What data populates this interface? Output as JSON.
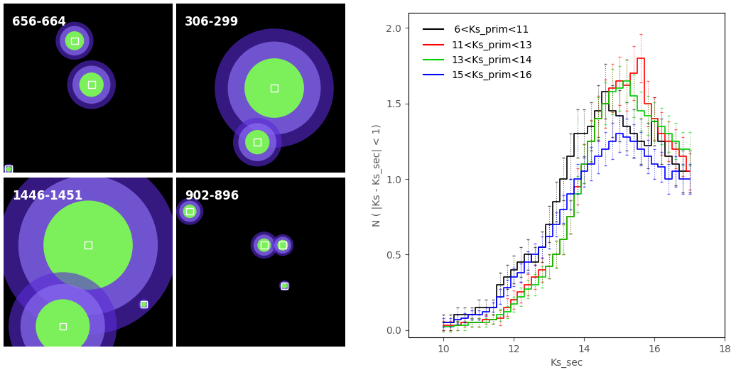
{
  "image_panels": [
    {
      "label": "656-664"
    },
    {
      "label": "306-299"
    },
    {
      "label": "1446-1451"
    },
    {
      "label": "902-896"
    }
  ],
  "chart_data": {
    "type": "line",
    "x_label": "Ks_sec",
    "y_label": "N ( |Ks - Ks_sec| < 1)",
    "xlim": [
      9,
      18
    ],
    "xticks": [
      10,
      12,
      14,
      16,
      18
    ],
    "ylim": [
      -0.05,
      2.1
    ],
    "yticks": [
      {
        "value": 0,
        "label": "0.0"
      },
      {
        "value": 0.5,
        "label": "0.5"
      },
      {
        "value": 1,
        "label": "1.0"
      },
      {
        "value": 1.5,
        "label": "1.5"
      },
      {
        "value": 2,
        "label": "2.0"
      }
    ],
    "legend": "upper left",
    "x": [
      10.0,
      10.2,
      10.4,
      10.6,
      10.8,
      11.0,
      11.2,
      11.4,
      11.6,
      11.8,
      12.0,
      12.2,
      12.4,
      12.6,
      12.8,
      13.0,
      13.2,
      13.4,
      13.6,
      13.8,
      14.0,
      14.2,
      14.4,
      14.6,
      14.8,
      15.0,
      15.2,
      15.4,
      15.6,
      15.8,
      16.0,
      16.2,
      16.4,
      16.6,
      16.8,
      17.0
    ],
    "series": [
      {
        "name": " 6<Ks_prim<11",
        "color": "#000000",
        "values": [
          0.05,
          0.05,
          0.1,
          0.1,
          0.1,
          0.15,
          0.15,
          0.15,
          0.3,
          0.35,
          0.4,
          0.45,
          0.5,
          0.45,
          0.55,
          0.7,
          0.85,
          1.0,
          1.15,
          1.3,
          1.3,
          1.35,
          1.45,
          1.58,
          1.45,
          1.42,
          1.35,
          1.3,
          1.25,
          1.22,
          1.38,
          1.25,
          1.15,
          1.1,
          1.05,
          1.05
        ],
        "errors": [
          0.05,
          0.05,
          0.05,
          0.05,
          0.05,
          0.05,
          0.05,
          0.05,
          0.08,
          0.08,
          0.09,
          0.1,
          0.1,
          0.1,
          0.1,
          0.12,
          0.13,
          0.14,
          0.15,
          0.16,
          0.16,
          0.16,
          0.17,
          0.18,
          0.17,
          0.17,
          0.16,
          0.16,
          0.15,
          0.15,
          0.16,
          0.15,
          0.15,
          0.14,
          0.14,
          0.14
        ]
      },
      {
        "name": "11<Ks_prim<13",
        "color": "#ff0000",
        "values": [
          0.03,
          0.03,
          0.03,
          0.05,
          0.05,
          0.05,
          0.07,
          0.07,
          0.08,
          0.15,
          0.2,
          0.25,
          0.3,
          0.35,
          0.4,
          0.42,
          0.5,
          0.6,
          0.75,
          0.95,
          1.1,
          1.25,
          1.4,
          1.5,
          1.6,
          1.65,
          1.62,
          1.7,
          1.8,
          1.5,
          1.4,
          1.3,
          1.25,
          1.2,
          1.15,
          1.05
        ],
        "errors": [
          0.03,
          0.03,
          0.03,
          0.03,
          0.03,
          0.03,
          0.03,
          0.03,
          0.05,
          0.06,
          0.06,
          0.07,
          0.07,
          0.08,
          0.08,
          0.08,
          0.09,
          0.1,
          0.11,
          0.12,
          0.13,
          0.14,
          0.15,
          0.16,
          0.16,
          0.16,
          0.17,
          0.18,
          0.16,
          0.15,
          0.14,
          0.14,
          0.13,
          0.13,
          0.13,
          0.12
        ]
      },
      {
        "name": "13<Ks_prim<14",
        "color": "#00cc00",
        "values": [
          0.02,
          0.02,
          0.03,
          0.03,
          0.05,
          0.05,
          0.05,
          0.07,
          0.1,
          0.12,
          0.17,
          0.22,
          0.27,
          0.3,
          0.35,
          0.42,
          0.5,
          0.6,
          0.75,
          0.9,
          1.1,
          1.25,
          1.4,
          1.5,
          1.58,
          1.6,
          1.65,
          1.55,
          1.45,
          1.42,
          1.38,
          1.35,
          1.3,
          1.25,
          1.2,
          1.2
        ],
        "errors": [
          0.03,
          0.03,
          0.03,
          0.03,
          0.03,
          0.03,
          0.03,
          0.03,
          0.04,
          0.04,
          0.05,
          0.06,
          0.06,
          0.07,
          0.07,
          0.08,
          0.09,
          0.1,
          0.11,
          0.12,
          0.13,
          0.13,
          0.14,
          0.14,
          0.15,
          0.15,
          0.14,
          0.14,
          0.13,
          0.13,
          0.13,
          0.12,
          0.12,
          0.12,
          0.11,
          0.11
        ]
      },
      {
        "name": "15<Ks_prim<16",
        "color": "#0000ff",
        "values": [
          0.05,
          0.05,
          0.07,
          0.08,
          0.1,
          0.1,
          0.12,
          0.15,
          0.22,
          0.28,
          0.35,
          0.38,
          0.45,
          0.5,
          0.55,
          0.62,
          0.7,
          0.8,
          0.9,
          1.0,
          1.05,
          1.1,
          1.15,
          1.2,
          1.25,
          1.3,
          1.28,
          1.25,
          1.2,
          1.15,
          1.1,
          1.08,
          1.0,
          1.05,
          1.0,
          1.0
        ],
        "errors": [
          0.03,
          0.03,
          0.03,
          0.03,
          0.03,
          0.03,
          0.03,
          0.03,
          0.05,
          0.05,
          0.06,
          0.06,
          0.07,
          0.07,
          0.07,
          0.08,
          0.08,
          0.09,
          0.1,
          0.1,
          0.1,
          0.11,
          0.11,
          0.11,
          0.12,
          0.12,
          0.12,
          0.11,
          0.11,
          0.11,
          0.1,
          0.1,
          0.1,
          0.1,
          0.1,
          0.1
        ]
      }
    ]
  }
}
